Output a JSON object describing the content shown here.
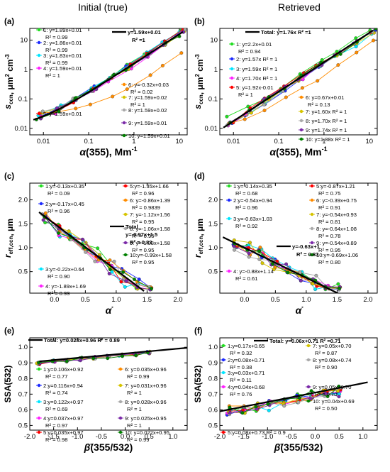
{
  "column_titles": [
    "Initial (true)",
    "Retrieved"
  ],
  "series_colors": [
    "#22dd22",
    "#1d2bff",
    "#00e6ff",
    "#ff22ff",
    "#ff0000",
    "#ff8c00",
    "#d6c400",
    "#a9a9a9",
    "#7b2aa8",
    "#008000"
  ],
  "chart_data": [
    {
      "panel": "(a)",
      "type": "scatter",
      "log_x": true,
      "log_y": true,
      "xlabel_symbol": "α",
      "xlabel_rest": "(355), Mm",
      "xlabel_sup": "-1",
      "ylabel_symbol": "s",
      "ylabel_sub": "ccn",
      "ylabel_rest": ", μm",
      "ylabel_sup": "2",
      "ylabel_rest2": "cm",
      "ylabel_sup2": "-3",
      "xlim": [
        0.005,
        15
      ],
      "ylim": [
        0.006,
        25
      ],
      "xticks": [
        0.01,
        0.1,
        1,
        10
      ],
      "xtick_labels": [
        "0.01",
        "0.1",
        "1",
        "10"
      ],
      "yticks": [
        0.01,
        0.1,
        1,
        10
      ],
      "ytick_labels": [
        "0.01",
        "0.1",
        "1",
        "10"
      ],
      "total": {
        "label": "y=1.59x+0.01",
        "r2": "R² =1",
        "slope": 1.59,
        "intercept": 0.01,
        "x_range": [
          0.006,
          12
        ]
      },
      "series": [
        {
          "name": "1: y=1.89x+0.01",
          "r2": "R² = 0.99"
        },
        {
          "name": "2: y=1.86x+0.01",
          "r2": "R² = 0.99"
        },
        {
          "name": "3: y=1.83x+0.01",
          "r2": "R² = 0.99"
        },
        {
          "name": "4: y=1.59x+0.01",
          "r2": "R² = 1"
        },
        {
          "name": "5: y=1.59x+0.01",
          "r2": ""
        },
        {
          "name": "6:  y=-0.32x+0.03",
          "r2": "R² = 0.02"
        },
        {
          "name": "7: y=1.59x+0.02",
          "r2": "R² = 1"
        },
        {
          "name": "8: y=1.59x+0.02",
          "r2": ""
        },
        {
          "name": "9: y=1.59x+0.01",
          "r2": ""
        },
        {
          "name": "10: y=1.59x+0.01",
          "r2": ""
        }
      ]
    },
    {
      "panel": "(b)",
      "type": "scatter",
      "log_x": true,
      "log_y": true,
      "xlabel_symbol": "α",
      "xlabel_rest": "(355), Mm",
      "xlabel_sup": "-1",
      "ylabel_symbol": "s",
      "ylabel_sub": "ccn",
      "ylabel_rest": ", μm",
      "ylabel_sup": "2",
      "ylabel_rest2": "cm",
      "ylabel_sup2": "-3",
      "xlim": [
        0.005,
        15
      ],
      "ylim": [
        0.006,
        25
      ],
      "xticks": [
        0.01,
        0.1,
        1,
        10
      ],
      "xtick_labels": [
        "0.01",
        "0.1",
        "1",
        "10"
      ],
      "yticks": [
        0.01,
        0.1,
        1,
        10
      ],
      "ytick_labels": [
        "0.01",
        "0.1",
        "1",
        "10"
      ],
      "total": {
        "label": "Total: y=1.76x R² =1",
        "r2": "",
        "slope": 1.76,
        "intercept": 0,
        "x_range": [
          0.006,
          12
        ]
      },
      "series": [
        {
          "name": "1: y=2.2x+0.01",
          "r2": "R² = 0.94"
        },
        {
          "name": "2: y=1.57x R² = 1",
          "r2": ""
        },
        {
          "name": "3: y=1.59x R² = 1",
          "r2": ""
        },
        {
          "name": "4: y=1.70x  R² = 1",
          "r2": ""
        },
        {
          "name": "5: y=1.92x-0.01",
          "r2": "R² = 1"
        },
        {
          "name": "6:  y=0.67x+0.01",
          "r2": "R² = 0.13"
        },
        {
          "name": "7:  y=1.60x  R² = 1",
          "r2": ""
        },
        {
          "name": "8:  y=1.70x  R² = 1",
          "r2": ""
        },
        {
          "name": "9:  y=1.74x  R² = 1",
          "r2": ""
        },
        {
          "name": "10: y=1.88x  R² = 1",
          "r2": ""
        }
      ]
    },
    {
      "panel": "(c)",
      "type": "scatter",
      "log_x": false,
      "log_y": false,
      "xlabel_symbol": "α̇",
      "xlabel_rest": "",
      "xlabel_sup": "",
      "ylabel_symbol": "r",
      "ylabel_sub": "eff,ccn",
      "ylabel_rest": ", μm",
      "ylabel_sup": "",
      "ylabel_rest2": "",
      "ylabel_sup2": "",
      "xlim": [
        -0.4,
        2.15
      ],
      "ylim": [
        0.05,
        2.35
      ],
      "xticks": [
        0,
        0.5,
        1,
        1.5,
        2
      ],
      "xtick_labels": [
        "0.0",
        "0.5",
        "1.0",
        "1.5",
        "2.0"
      ],
      "yticks": [
        0.5,
        1,
        1.5,
        2
      ],
      "ytick_labels": [
        "0.5",
        "1.0",
        "1.5",
        "2.0"
      ],
      "total": {
        "label": "Total",
        "label2": "y=-0.97x+1.5",
        "r2": "R² = 0.83",
        "slope": -0.97,
        "intercept": 1.5,
        "x_range": [
          -0.25,
          1.45
        ]
      },
      "series": [
        {
          "name": "1:y=-0.13x+0.35",
          "r2": "R² = 0.09"
        },
        {
          "name": "2:y=-0.17x+0.45",
          "r2": "R² = 0.96"
        },
        {
          "name": "3:y=-0.22x+0.64",
          "r2": "R² = 0.90"
        },
        {
          "name": "4: y=-1.89x+1.69",
          "r2": "R² = 0.99"
        },
        {
          "name": "5:y=-1.35x+1.66",
          "r2": "R² = 0.96"
        },
        {
          "name": "6: y=-0.86x+1.39",
          "r2": "R² = 0.9839"
        },
        {
          "name": "7: y=-1.12x+1.56",
          "r2": "R² = 0.95"
        },
        {
          "name": "8: y=-1.06x+1.58",
          "r2": "R² = 0.95"
        },
        {
          "name": "9: y=-1.03x+1.58",
          "r2": "R² = 0.95"
        },
        {
          "name": "10:y=-0.99x+1.58",
          "r2": "R² = 0.95"
        }
      ]
    },
    {
      "panel": "(d)",
      "type": "scatter",
      "log_x": false,
      "log_y": false,
      "xlabel_symbol": "α̇",
      "xlabel_rest": "",
      "xlabel_sup": "",
      "ylabel_symbol": "r",
      "ylabel_sub": "eff,ccn",
      "ylabel_rest": ", μm",
      "ylabel_sup": "",
      "ylabel_rest2": "",
      "ylabel_sup2": "",
      "xlim": [
        -0.4,
        2.15
      ],
      "ylim": [
        0.05,
        2.35
      ],
      "xticks": [
        0,
        0.5,
        1,
        1.5,
        2
      ],
      "xtick_labels": [
        "0.0",
        "0.5",
        "1.0",
        "1.5",
        "2.0"
      ],
      "yticks": [
        0.5,
        1,
        1.5,
        2
      ],
      "ytick_labels": [
        "0.5",
        "1.0",
        "1.5",
        "2.0"
      ],
      "total": {
        "label": "y=-0.63x+1",
        "r2": "R² = 0.83",
        "slope": -0.63,
        "intercept": 1.0,
        "x_range": [
          -0.35,
          1.55
        ]
      },
      "series": [
        {
          "name": "1:y=-0.14x+0.35",
          "r2": "R² = 0.68"
        },
        {
          "name": "2:y=-0.54x+0.94",
          "r2": "R² = 0.96"
        },
        {
          "name": "3:y=-0.63x+1.03",
          "r2": "R² = 0.92"
        },
        {
          "name": "4: y=-0.88x+1.14",
          "r2": "R² = 0.61"
        },
        {
          "name": "5:y=-0.87x+1.21",
          "r2": "R² = 0.75"
        },
        {
          "name": "6: y=-0.39x+0.75",
          "r2": "R² = 0.91"
        },
        {
          "name": "7: y=-0.54x+0.93",
          "r2": "R² = 0.81"
        },
        {
          "name": "8: y=-0.64x+1.08",
          "r2": "R² = 0.78"
        },
        {
          "name": "9: y=-0.54x+0.89",
          "r2": "R² = 0.95"
        },
        {
          "name": "10:y=-0.69x+1.06",
          "r2": "R² = 0.80"
        }
      ]
    },
    {
      "panel": "(e)",
      "type": "scatter",
      "log_x": false,
      "log_y": false,
      "xlabel_symbol": "β̇",
      "xlabel_rest": "(355/532)",
      "xlabel_sup": "",
      "ylabel_symbol": "",
      "ylabel_sub": "",
      "ylabel_rest": "SSA(532)",
      "ylabel_sup": "",
      "ylabel_rest2": "",
      "ylabel_sup2": "",
      "xlim": [
        -2.0,
        1.3
      ],
      "ylim": [
        0.47,
        1.06
      ],
      "xticks": [
        -2,
        -1.5,
        -1,
        -0.5,
        0,
        0.5,
        1
      ],
      "xtick_labels": [
        "-2.0",
        "-1.5",
        "-1.0",
        "-0.5",
        "0.0",
        "0.5",
        "1.0"
      ],
      "yticks": [
        0.5,
        0.6,
        0.7,
        0.8,
        0.9,
        1.0
      ],
      "ytick_labels": [
        "0.5",
        "0.6",
        "0.7",
        "0.8",
        "0.9",
        "1.0"
      ],
      "total": {
        "label": "Total: y=0.028x+0.96 R² = 0.89",
        "r2": "",
        "slope": 0.028,
        "intercept": 0.96,
        "x_range": [
          -1.8,
          1.3
        ]
      },
      "series": [
        {
          "name": "1:y=0.106x+0.92",
          "r2": "R² = 0.77"
        },
        {
          "name": "2:y=0.116x+0.94",
          "r2": "R² = 0.74"
        },
        {
          "name": "3:y=0.122x+0.97",
          "r2": "R² = 0.69"
        },
        {
          "name": "4:y=0.037x+0.97",
          "r2": "R² = 0.97"
        },
        {
          "name": "5:y=0.035x+0.97",
          "r2": "R² = 0.98"
        },
        {
          "name": "6: y=0.035x+0.96",
          "r2": "R² = 0.99"
        },
        {
          "name": "7: y=0.031x+0.96",
          "r2": "R² = 1"
        },
        {
          "name": "8: y=0.028x+0.96",
          "r2": "R² = 1"
        },
        {
          "name": "9: y=0.025x+0.95",
          "r2": "R² = 1"
        },
        {
          "name": "10: y=0.022x+0.95",
          "r2": "R² = 0.99"
        }
      ]
    },
    {
      "panel": "(f)",
      "type": "scatter",
      "log_x": false,
      "log_y": false,
      "xlabel_symbol": "β̇",
      "xlabel_rest": "(355/532)",
      "xlabel_sup": "",
      "ylabel_symbol": "",
      "ylabel_sub": "",
      "ylabel_rest": "SSA(532)",
      "ylabel_sup": "",
      "ylabel_rest2": "",
      "ylabel_sup2": "",
      "xlim": [
        -2.0,
        1.3
      ],
      "ylim": [
        0.47,
        1.06
      ],
      "xticks": [
        -2,
        -1.5,
        -1,
        -0.5,
        0,
        0.5,
        1
      ],
      "xtick_labels": [
        "-2.0",
        "-1.5",
        "-1.0",
        "-0.5",
        "0.0",
        "0.5",
        "1.0"
      ],
      "yticks": [
        0.5,
        0.6,
        0.7,
        0.8,
        0.9,
        1.0
      ],
      "ytick_labels": [
        "0.5",
        "0.6",
        "0.7",
        "0.8",
        "0.9",
        "1.0"
      ],
      "total": {
        "label": "Total: y=0.06x+0.71 R² =0.71",
        "r2": "",
        "slope": 0.06,
        "intercept": 0.71,
        "x_range": [
          -2.0,
          1.1
        ]
      },
      "series": [
        {
          "name": "1:y=0.17x+0.65",
          "r2": "R² = 0.32"
        },
        {
          "name": "2:y=0.08x+0.71",
          "r2": "R² = 0.38"
        },
        {
          "name": "3:y=0.03x+0.71",
          "r2": "R² = 0.11"
        },
        {
          "name": "4:y=0.04x+0.68",
          "r2": "R² = 0.76"
        },
        {
          "name": "5:y=0.08x+0.73  R² = 0.9",
          "r2": ""
        },
        {
          "name": "6:y=0.04x+0.69  R² = 0.47",
          "r2": ""
        },
        {
          "name": "7: y=0.05x+0.70",
          "r2": "R² = 0.87"
        },
        {
          "name": "8: y=0.08x+0.74",
          "r2": "R² = 0.90"
        },
        {
          "name": "9: y=0.05x+0.70",
          "r2": "R² = 0.70"
        },
        {
          "name": "10: y=0.04x+0.69",
          "r2": "R² = 0.50"
        }
      ]
    }
  ]
}
